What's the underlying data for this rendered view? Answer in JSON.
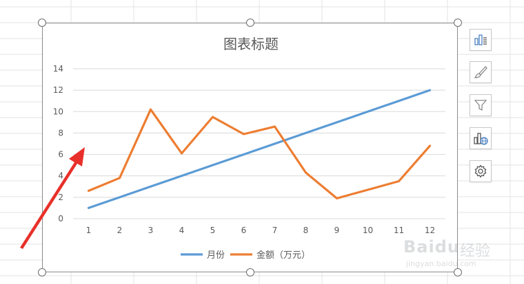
{
  "chart_data": {
    "type": "line",
    "title": "图表标题",
    "categories": [
      "1",
      "2",
      "3",
      "4",
      "5",
      "6",
      "7",
      "8",
      "9",
      "10",
      "11",
      "12"
    ],
    "series": [
      {
        "name": "月份",
        "color": "#5B9BD5",
        "values": [
          1,
          2,
          3,
          4,
          5,
          6,
          7,
          8,
          9,
          10,
          11,
          12
        ]
      },
      {
        "name": "金额（万元）",
        "color": "#ED7D31",
        "values": [
          2.6,
          3.8,
          10.2,
          6.1,
          9.5,
          7.9,
          8.6,
          4.3,
          1.9,
          2.7,
          3.5,
          6.8
        ]
      }
    ],
    "y_ticks": [
      "0",
      "2",
      "4",
      "6",
      "8",
      "10",
      "12",
      "14"
    ],
    "ylim": [
      0,
      14
    ],
    "grid": true,
    "legend": "bottom"
  },
  "side_toolbar": {
    "icons": [
      "chart-elements-icon",
      "brush-icon",
      "filter-icon",
      "chart-map-icon",
      "gear-icon"
    ]
  },
  "watermark": {
    "brand": "Baidu",
    "brand_cn": "经验",
    "url": "jingyan.baidu.com"
  },
  "annotation": {
    "color": "#E8302A"
  }
}
